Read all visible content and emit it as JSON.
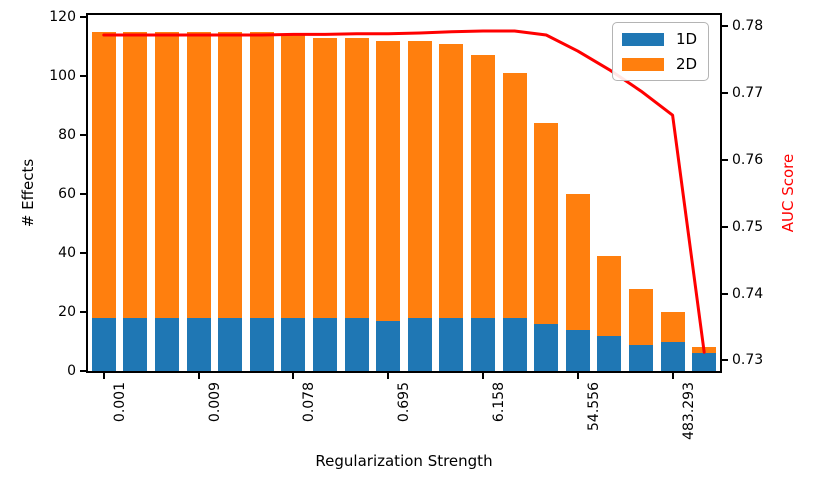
{
  "figure": {
    "background": "#ffffff",
    "axis_color": "#000000"
  },
  "chart_data": {
    "type": "bar+line",
    "title": "",
    "xlabel": "Regularization Strength",
    "ylabel_left": "# Effects",
    "ylabel_right": "AUC Score",
    "ylabel_right_color": "#ff0000",
    "n_bars": 20,
    "stacked": true,
    "bar_width_frac": 0.76,
    "xtick_labels": [
      "0.001",
      "0.009",
      "0.078",
      "0.695",
      "6.158",
      "54.556",
      "483.293"
    ],
    "xtick_indices": [
      0,
      3,
      6,
      9,
      12,
      15,
      18
    ],
    "ytick_values_left": [
      0,
      20,
      40,
      60,
      80,
      100,
      120
    ],
    "ytick_labels_left": [
      "0",
      "20",
      "40",
      "60",
      "80",
      "100",
      "120"
    ],
    "ylim_left": [
      0,
      120.7
    ],
    "ytick_values_right": [
      0.73,
      0.74,
      0.75,
      0.76,
      0.77,
      0.78
    ],
    "ytick_labels_right": [
      "0.73",
      "0.74",
      "0.75",
      "0.76",
      "0.77",
      "0.78"
    ],
    "ylim_right": [
      0.7284,
      0.7817
    ],
    "grid": false,
    "legend": {
      "position": "upper right",
      "entries": [
        {
          "label": "1D",
          "color": "#1f77b4"
        },
        {
          "label": "2D",
          "color": "#ff7f0e"
        }
      ]
    },
    "series": [
      {
        "name": "1D",
        "type": "bar",
        "axis": "left",
        "color": "#1f77b4",
        "values": [
          18,
          18,
          18,
          18,
          18,
          18,
          18,
          18,
          18,
          17,
          18,
          18,
          18,
          18,
          16,
          14,
          12,
          9,
          10,
          6
        ]
      },
      {
        "name": "2D",
        "type": "bar",
        "axis": "left",
        "color": "#ff7f0e",
        "values": [
          97,
          97,
          97,
          97,
          97,
          97,
          96,
          95,
          95,
          95,
          94,
          93,
          89,
          83,
          68,
          46,
          27,
          19,
          10,
          2
        ]
      },
      {
        "name": "AUC Score",
        "type": "line",
        "axis": "right",
        "color": "#ff0000",
        "line_width": 3,
        "values": [
          0.7787,
          0.7787,
          0.7787,
          0.7787,
          0.7787,
          0.7787,
          0.7788,
          0.7788,
          0.7789,
          0.7789,
          0.779,
          0.7792,
          0.7793,
          0.7793,
          0.7787,
          0.7763,
          0.7735,
          0.7703,
          0.7667,
          0.7312
        ]
      }
    ]
  }
}
